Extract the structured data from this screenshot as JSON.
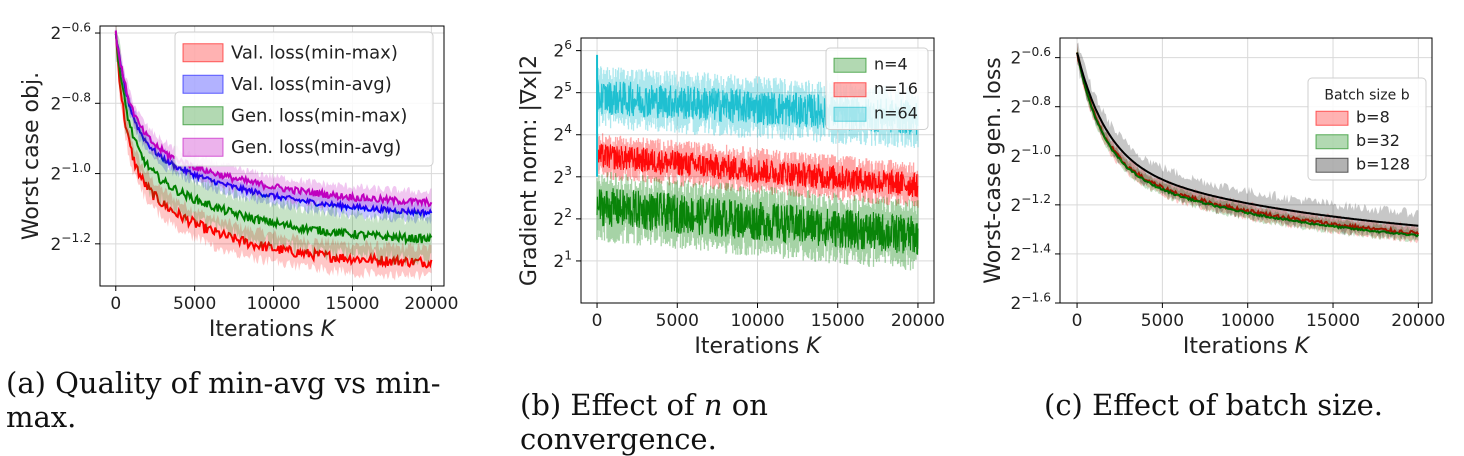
{
  "captions": {
    "a": "(a) Quality of min-avg vs min-max.",
    "b_pre": "(b) Effect of ",
    "b_var": "n",
    "b_post": " on convergence.",
    "c": "(c) Effect of batch size."
  },
  "chart_data": [
    {
      "id": "a",
      "type": "line",
      "title": "",
      "xlabel": "Iterations K",
      "ylabel": "Worst case obj.",
      "yscale": "log2",
      "xlim": [
        -1000,
        20800
      ],
      "ylim_exp": [
        -1.32,
        -0.58
      ],
      "xticks": [
        0,
        5000,
        10000,
        15000,
        20000
      ],
      "xtick_labels": [
        "0",
        "5000",
        "10000",
        "15000",
        "20000"
      ],
      "yticks_exp": [
        -0.6,
        -0.8,
        -1.0,
        -1.2
      ],
      "ytick_labels": [
        "2−0.6",
        "2−0.8",
        "2−1.0",
        "2−1.2"
      ],
      "grid": true,
      "legend_position": "top-right",
      "series": [
        {
          "name": "Val. loss(min-max)",
          "color": "#ff0000",
          "start_exp": -0.6,
          "end_exp": -1.26,
          "decay": 1800,
          "band": 0.04,
          "noise": 0.015
        },
        {
          "name": "Val. loss(min-avg)",
          "color": "#0000ff",
          "start_exp": -0.6,
          "end_exp": -1.13,
          "decay": 2600,
          "band": 0.025,
          "noise": 0.008
        },
        {
          "name": "Gen. loss(min-max)",
          "color": "#008000",
          "start_exp": -0.6,
          "end_exp": -1.2,
          "decay": 2200,
          "band": 0.06,
          "noise": 0.012
        },
        {
          "name": "Gen. loss(min-avg)",
          "color": "#bf00bf",
          "start_exp": -0.6,
          "end_exp": -1.1,
          "decay": 2600,
          "band": 0.03,
          "noise": 0.01
        }
      ]
    },
    {
      "id": "b",
      "type": "line",
      "title": "",
      "xlabel": "Iterations K",
      "ylabel": "Gradient norm: |∇x|2",
      "yscale": "log2",
      "xlim": [
        -1000,
        21000
      ],
      "ylim_exp": [
        0.0,
        6.3
      ],
      "xticks": [
        0,
        5000,
        10000,
        15000,
        20000
      ],
      "xtick_labels": [
        "0",
        "5000",
        "10000",
        "15000",
        "20000"
      ],
      "yticks_exp": [
        1,
        2,
        3,
        4,
        5,
        6
      ],
      "ytick_labels": [
        "21",
        "22",
        "23",
        "24",
        "25",
        "26"
      ],
      "grid": true,
      "legend_position": "top-right",
      "series": [
        {
          "name": "n=64",
          "color": "#17becf",
          "start_exp": 4.9,
          "end_exp": 4.4,
          "band": 0.75
        },
        {
          "name": "n=16",
          "color": "#ff0000",
          "start_exp": 3.5,
          "end_exp": 2.8,
          "band": 0.55
        },
        {
          "name": "n=4",
          "color": "#008000",
          "start_exp": 2.3,
          "end_exp": 1.6,
          "band": 0.85
        }
      ]
    },
    {
      "id": "c",
      "type": "line",
      "title": "",
      "xlabel": "Iterations K",
      "ylabel": "Worst-case gen. loss",
      "yscale": "log2",
      "xlim": [
        -1000,
        20800
      ],
      "ylim_exp": [
        -1.6,
        -0.52
      ],
      "xticks": [
        0,
        5000,
        10000,
        15000,
        20000
      ],
      "xtick_labels": [
        "0",
        "5000",
        "10000",
        "15000",
        "20000"
      ],
      "yticks_exp": [
        -0.6,
        -0.8,
        -1.0,
        -1.2,
        -1.4,
        -1.6
      ],
      "ytick_labels": [
        "2−0.6",
        "2−0.8",
        "2−1.0",
        "2−1.2",
        "2−1.4",
        "2−1.6"
      ],
      "grid": true,
      "legend_title": "Batch size b",
      "legend_position": "top-right",
      "series": [
        {
          "name": "b=8",
          "color": "#ff0000",
          "start_exp": -0.58,
          "end_exp": -1.39,
          "decay": 4200,
          "band": 0.03,
          "noise": 0.008
        },
        {
          "name": "b=32",
          "color": "#008000",
          "start_exp": -0.58,
          "end_exp": -1.4,
          "decay": 4200,
          "band": 0.025,
          "noise": 0.004
        },
        {
          "name": "b=128",
          "color": "#000000",
          "start_exp": -0.58,
          "end_exp": -1.38,
          "decay": 5000,
          "band": 0.05,
          "noise": 0.0
        }
      ]
    }
  ]
}
